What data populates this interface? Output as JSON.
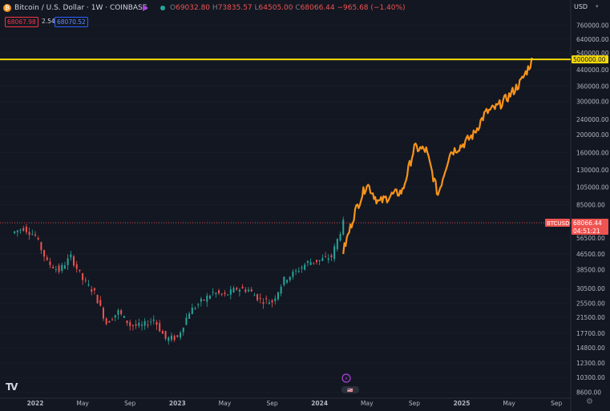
{
  "header": {
    "logo_glyph": "₿",
    "title": "Bitcoin / U.S. Dollar · 1W · COINBASE",
    "ohlc": [
      {
        "label": "O",
        "value": "69032.80"
      },
      {
        "label": "H",
        "value": "73835.57"
      },
      {
        "label": "L",
        "value": "64505.00"
      },
      {
        "label": "C",
        "value": "68066.44"
      }
    ],
    "change": "−965.68 (−1.40%)",
    "sell_price": "68067.98",
    "spread": "2.54",
    "buy_price": "68070.52",
    "currency": "USD"
  },
  "colors": {
    "background": "#131722",
    "up": "#26a69a",
    "down": "#ef5350",
    "projection": "#f7931a",
    "target_line": "#f5d90a",
    "price_line": "#ef5350",
    "grid": "#1e222d"
  },
  "icons": {
    "tradingview_logo": "TV",
    "settings_icon": "⚙"
  },
  "chart_data": {
    "type": "line",
    "scale": "log",
    "ylim": [
      8000,
      900000
    ],
    "y_ticks": [
      "760000.00",
      "640000.00",
      "540000.00",
      "440000.00",
      "360000.00",
      "300000.00",
      "240000.00",
      "200000.00",
      "160000.00",
      "130000.00",
      "105000.00",
      "85000.00",
      "56500.00",
      "46500.00",
      "38500.00",
      "30500.00",
      "25500.00",
      "21500.00",
      "17700.00",
      "14800.00",
      "12300.00",
      "10300.00",
      "8600.00"
    ],
    "x_ticks": [
      "2022",
      "May",
      "Sep",
      "2023",
      "May",
      "Sep",
      "2024",
      "May",
      "Sep",
      "2025",
      "May",
      "Sep"
    ],
    "price_history": {
      "name": "BTCUSD",
      "x": [
        "2021-11",
        "2021-12",
        "2022-01",
        "2022-02",
        "2022-03",
        "2022-04",
        "2022-05",
        "2022-06",
        "2022-07",
        "2022-08",
        "2022-09",
        "2022-10",
        "2022-11",
        "2022-12",
        "2023-01",
        "2023-02",
        "2023-03",
        "2023-04",
        "2023-05",
        "2023-06",
        "2023-07",
        "2023-08",
        "2023-09",
        "2023-10",
        "2023-11",
        "2023-12",
        "2024-01",
        "2024-02",
        "2024-03"
      ],
      "values": [
        60000,
        64000,
        58000,
        42000,
        38000,
        45000,
        34000,
        29000,
        20000,
        23000,
        19500,
        19300,
        21000,
        16500,
        16800,
        23000,
        26000,
        29000,
        28000,
        30500,
        30000,
        26500,
        26000,
        34000,
        37500,
        42000,
        43000,
        45000,
        68066
      ]
    },
    "projection": {
      "x": [
        "2024-03",
        "2024-04",
        "2024-05",
        "2024-06",
        "2024-07",
        "2024-08",
        "2024-09",
        "2024-10",
        "2024-11",
        "2024-12",
        "2025-01",
        "2025-02",
        "2025-03",
        "2025-04",
        "2025-05",
        "2025-06",
        "2025-07"
      ],
      "values": [
        48000,
        78000,
        110000,
        87000,
        95000,
        100000,
        170000,
        165000,
        96000,
        160000,
        175000,
        200000,
        260000,
        280000,
        320000,
        380000,
        500000
      ]
    },
    "horizontal_line": {
      "value": 500000,
      "label": "500000.00"
    },
    "last_price": {
      "value": 68066.44,
      "label": "BTCUSD",
      "price": "68066.44",
      "countdown": "04:51:21"
    },
    "markers": [
      "⚡",
      "🇺🇸"
    ]
  }
}
